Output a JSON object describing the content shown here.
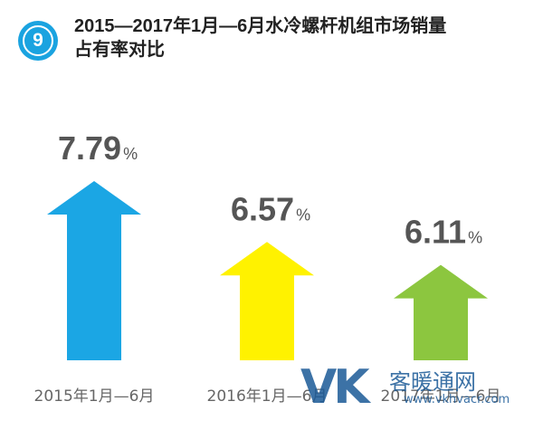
{
  "header": {
    "badge": "9",
    "title_line1": "2015—2017年1月—6月水冷螺杆机组市场销量",
    "title_line2": "占有率对比"
  },
  "watermark": {
    "logo": "VK",
    "name": "暖通网",
    "url": "www.vkhvacr.com"
  },
  "colors": {
    "badge": "#1aa3e0",
    "bar_2015": "#1ba6e4",
    "bar_2016": "#fff200",
    "bar_2017": "#8cc63f",
    "value_text": "#555555",
    "label_text": "#666666"
  },
  "chart_data": {
    "type": "bar",
    "categories": [
      "2015年1月—6月",
      "2016年1月—6月",
      "2017年1月—6月"
    ],
    "values": [
      7.79,
      6.57,
      6.11
    ],
    "value_labels": [
      "7.79",
      "6.57",
      "6.11"
    ],
    "unit": "%",
    "title": "2015—2017年1月—6月水冷螺杆机组市场销量占有率对比",
    "xlabel": "",
    "ylabel": "",
    "grid": false,
    "legend": "none"
  }
}
